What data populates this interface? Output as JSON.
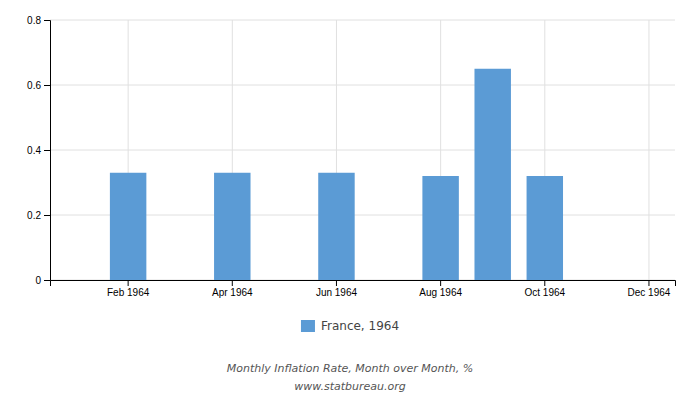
{
  "chart_data": {
    "type": "bar",
    "categories": [
      null,
      "Feb 1964",
      null,
      "Apr 1964",
      null,
      "Jun 1964",
      null,
      "Aug 1964",
      null,
      "Oct 1964",
      null,
      "Dec 1964"
    ],
    "series": [
      {
        "name": "France, 1964",
        "color": "#5b9bd5",
        "values": [
          null,
          0.33,
          null,
          0.33,
          null,
          0.33,
          null,
          0.32,
          0.65,
          0.32,
          null,
          null
        ]
      }
    ],
    "ylim": [
      0,
      0.8
    ],
    "yticks": [
      0,
      0.2,
      0.4,
      0.6,
      0.8
    ],
    "grid": true,
    "legend": "bottom",
    "annotations": [
      "Monthly Inflation Rate, Month over Month, %",
      "www.statbureau.org"
    ]
  }
}
